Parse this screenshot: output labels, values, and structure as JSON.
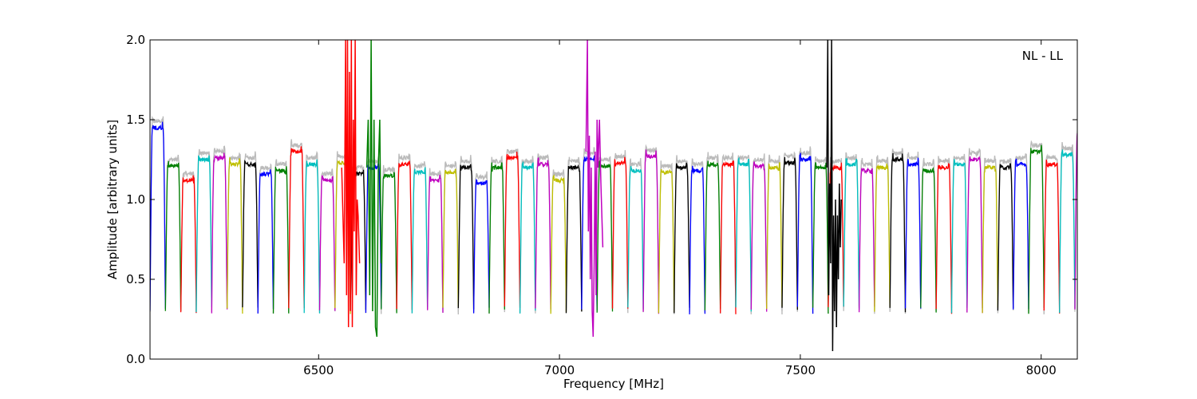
{
  "chart_data": {
    "type": "line",
    "title": "",
    "xlabel": "Frequency [MHz]",
    "ylabel": "Amplitude [arbitrary units]",
    "annotation": "NL - LL",
    "xlim": [
      6150,
      8075
    ],
    "ylim": [
      0.0,
      2.0
    ],
    "xticks": [
      6500,
      7000,
      7500,
      8000
    ],
    "yticks": [
      0.0,
      0.5,
      1.0,
      1.5,
      2.0
    ],
    "xtick_labels": [
      "6500",
      "7000",
      "7500",
      "8000"
    ],
    "ytick_labels": [
      "0.0",
      "0.5",
      "1.0",
      "1.5",
      "2.0"
    ],
    "grid": false,
    "reference_color": "#bbbbbb",
    "channel_width_mhz": 32,
    "channel_start_mhz": 6150,
    "color_cycle": [
      "#0000ff",
      "#008000",
      "#ff0000",
      "#00bfbf",
      "#bf00bf",
      "#bfbf00",
      "#000000"
    ],
    "channel_levels": [
      1.45,
      1.21,
      1.12,
      1.25,
      1.26,
      1.22,
      1.22,
      1.16,
      1.18,
      1.3,
      1.22,
      1.12,
      1.23,
      1.16,
      1.2,
      1.15,
      1.22,
      1.17,
      1.12,
      1.17,
      1.2,
      1.1,
      1.2,
      1.26,
      1.2,
      1.22,
      1.12,
      1.2,
      1.25,
      1.21,
      1.23,
      1.18,
      1.27,
      1.17,
      1.2,
      1.18,
      1.22,
      1.22,
      1.22,
      1.21,
      1.2,
      1.23,
      1.25,
      1.2,
      1.2,
      1.22,
      1.18,
      1.2,
      1.25,
      1.22,
      1.18,
      1.2,
      1.22,
      1.25,
      1.2,
      1.2,
      1.22,
      1.3,
      1.22,
      1.28,
      1.4
    ],
    "series": [
      {
        "color": "#ff0000",
        "x": [
          6548,
          6553,
          6556,
          6558,
          6560,
          6562,
          6564,
          6566,
          6568,
          6570,
          6572,
          6574,
          6576,
          6578,
          6580,
          6582,
          6585
        ],
        "y": [
          1.2,
          0.6,
          2.0,
          0.4,
          2.0,
          0.2,
          1.8,
          0.3,
          2.0,
          0.2,
          1.5,
          0.8,
          2.0,
          0.4,
          1.0,
          0.9,
          0.6
        ]
      },
      {
        "color": "#008000",
        "x": [
          6600,
          6603,
          6606,
          6609,
          6612,
          6615,
          6618,
          6621,
          6624,
          6627,
          6630
        ],
        "y": [
          1.2,
          1.5,
          0.4,
          2.0,
          0.3,
          1.5,
          0.2,
          0.14,
          1.2,
          1.5,
          0.6
        ]
      },
      {
        "color": "#bf00bf",
        "x": [
          7055,
          7058,
          7060,
          7062,
          7064,
          7066,
          7068,
          7070,
          7072,
          7074,
          7076,
          7078,
          7080,
          7083,
          7086,
          7090
        ],
        "y": [
          1.3,
          2.0,
          0.8,
          1.4,
          0.5,
          1.2,
          0.3,
          0.14,
          0.6,
          1.3,
          0.4,
          1.5,
          1.2,
          1.5,
          1.1,
          0.7
        ]
      },
      {
        "color": "#000000",
        "x": [
          7555,
          7557,
          7559,
          7561,
          7563,
          7565,
          7567,
          7569,
          7571,
          7573,
          7575,
          7577,
          7579,
          7581,
          7583,
          7585
        ],
        "y": [
          1.2,
          2.0,
          0.4,
          1.1,
          0.6,
          2.0,
          0.05,
          0.9,
          0.3,
          1.0,
          0.2,
          0.9,
          0.5,
          1.1,
          0.7,
          1.0
        ]
      }
    ]
  }
}
